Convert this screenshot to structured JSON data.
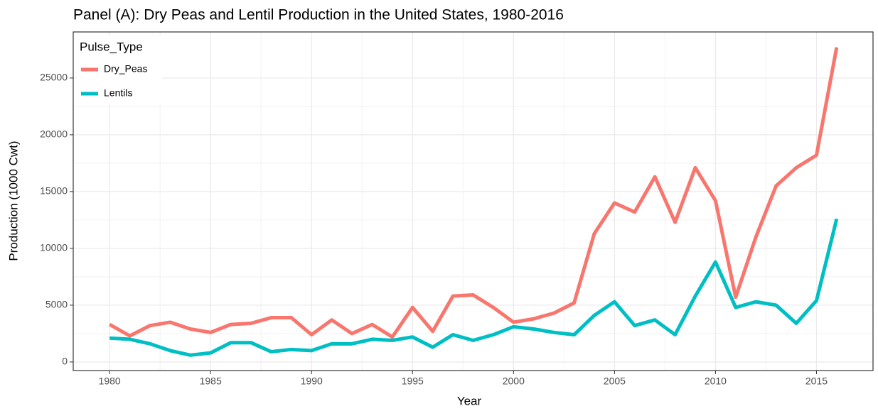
{
  "chart_data": {
    "type": "line",
    "title": "Panel (A): Dry Peas and Lentil Production in the United States, 1980-2016",
    "x_label": "Year",
    "y_label": "Production (1000 Cwt)",
    "legend_title": "Pulse_Type",
    "legend_position": "top-left",
    "grid": true,
    "x": [
      1980,
      1981,
      1982,
      1983,
      1984,
      1985,
      1986,
      1987,
      1988,
      1989,
      1990,
      1991,
      1992,
      1993,
      1994,
      1995,
      1996,
      1997,
      1998,
      1999,
      2000,
      2001,
      2002,
      2003,
      2004,
      2005,
      2006,
      2007,
      2008,
      2009,
      2010,
      2011,
      2012,
      2013,
      2014,
      2015,
      2016
    ],
    "series": [
      {
        "name": "Dry_Peas",
        "color": "#F8766D",
        "values": [
          3300,
          2300,
          3200,
          3500,
          2900,
          2600,
          3300,
          3400,
          3900,
          3900,
          2400,
          3700,
          2500,
          3300,
          2200,
          4800,
          2700,
          5800,
          5900,
          4800,
          3500,
          3800,
          4300,
          5200,
          11300,
          14000,
          13200,
          16300,
          12300,
          17100,
          14200,
          5700,
          11000,
          15500,
          17100,
          18200,
          27700
        ]
      },
      {
        "name": "Lentils",
        "color": "#00BFC4",
        "values": [
          2100,
          2000,
          1600,
          1000,
          600,
          800,
          1700,
          1700,
          900,
          1100,
          1000,
          1600,
          1600,
          2000,
          1900,
          2200,
          1300,
          2400,
          1900,
          2400,
          3100,
          2900,
          2600,
          2400,
          4100,
          5300,
          3200,
          3700,
          2400,
          5800,
          8800,
          4800,
          5300,
          5000,
          3400,
          5400,
          12600
        ]
      }
    ],
    "xlim": [
      1978.2,
      2017.8
    ],
    "xticks": [
      1980,
      1985,
      1990,
      1995,
      2000,
      2005,
      2010,
      2015
    ],
    "ylim": [
      -755,
      29055
    ],
    "yticks": [
      0,
      5000,
      10000,
      15000,
      20000,
      25000
    ]
  }
}
